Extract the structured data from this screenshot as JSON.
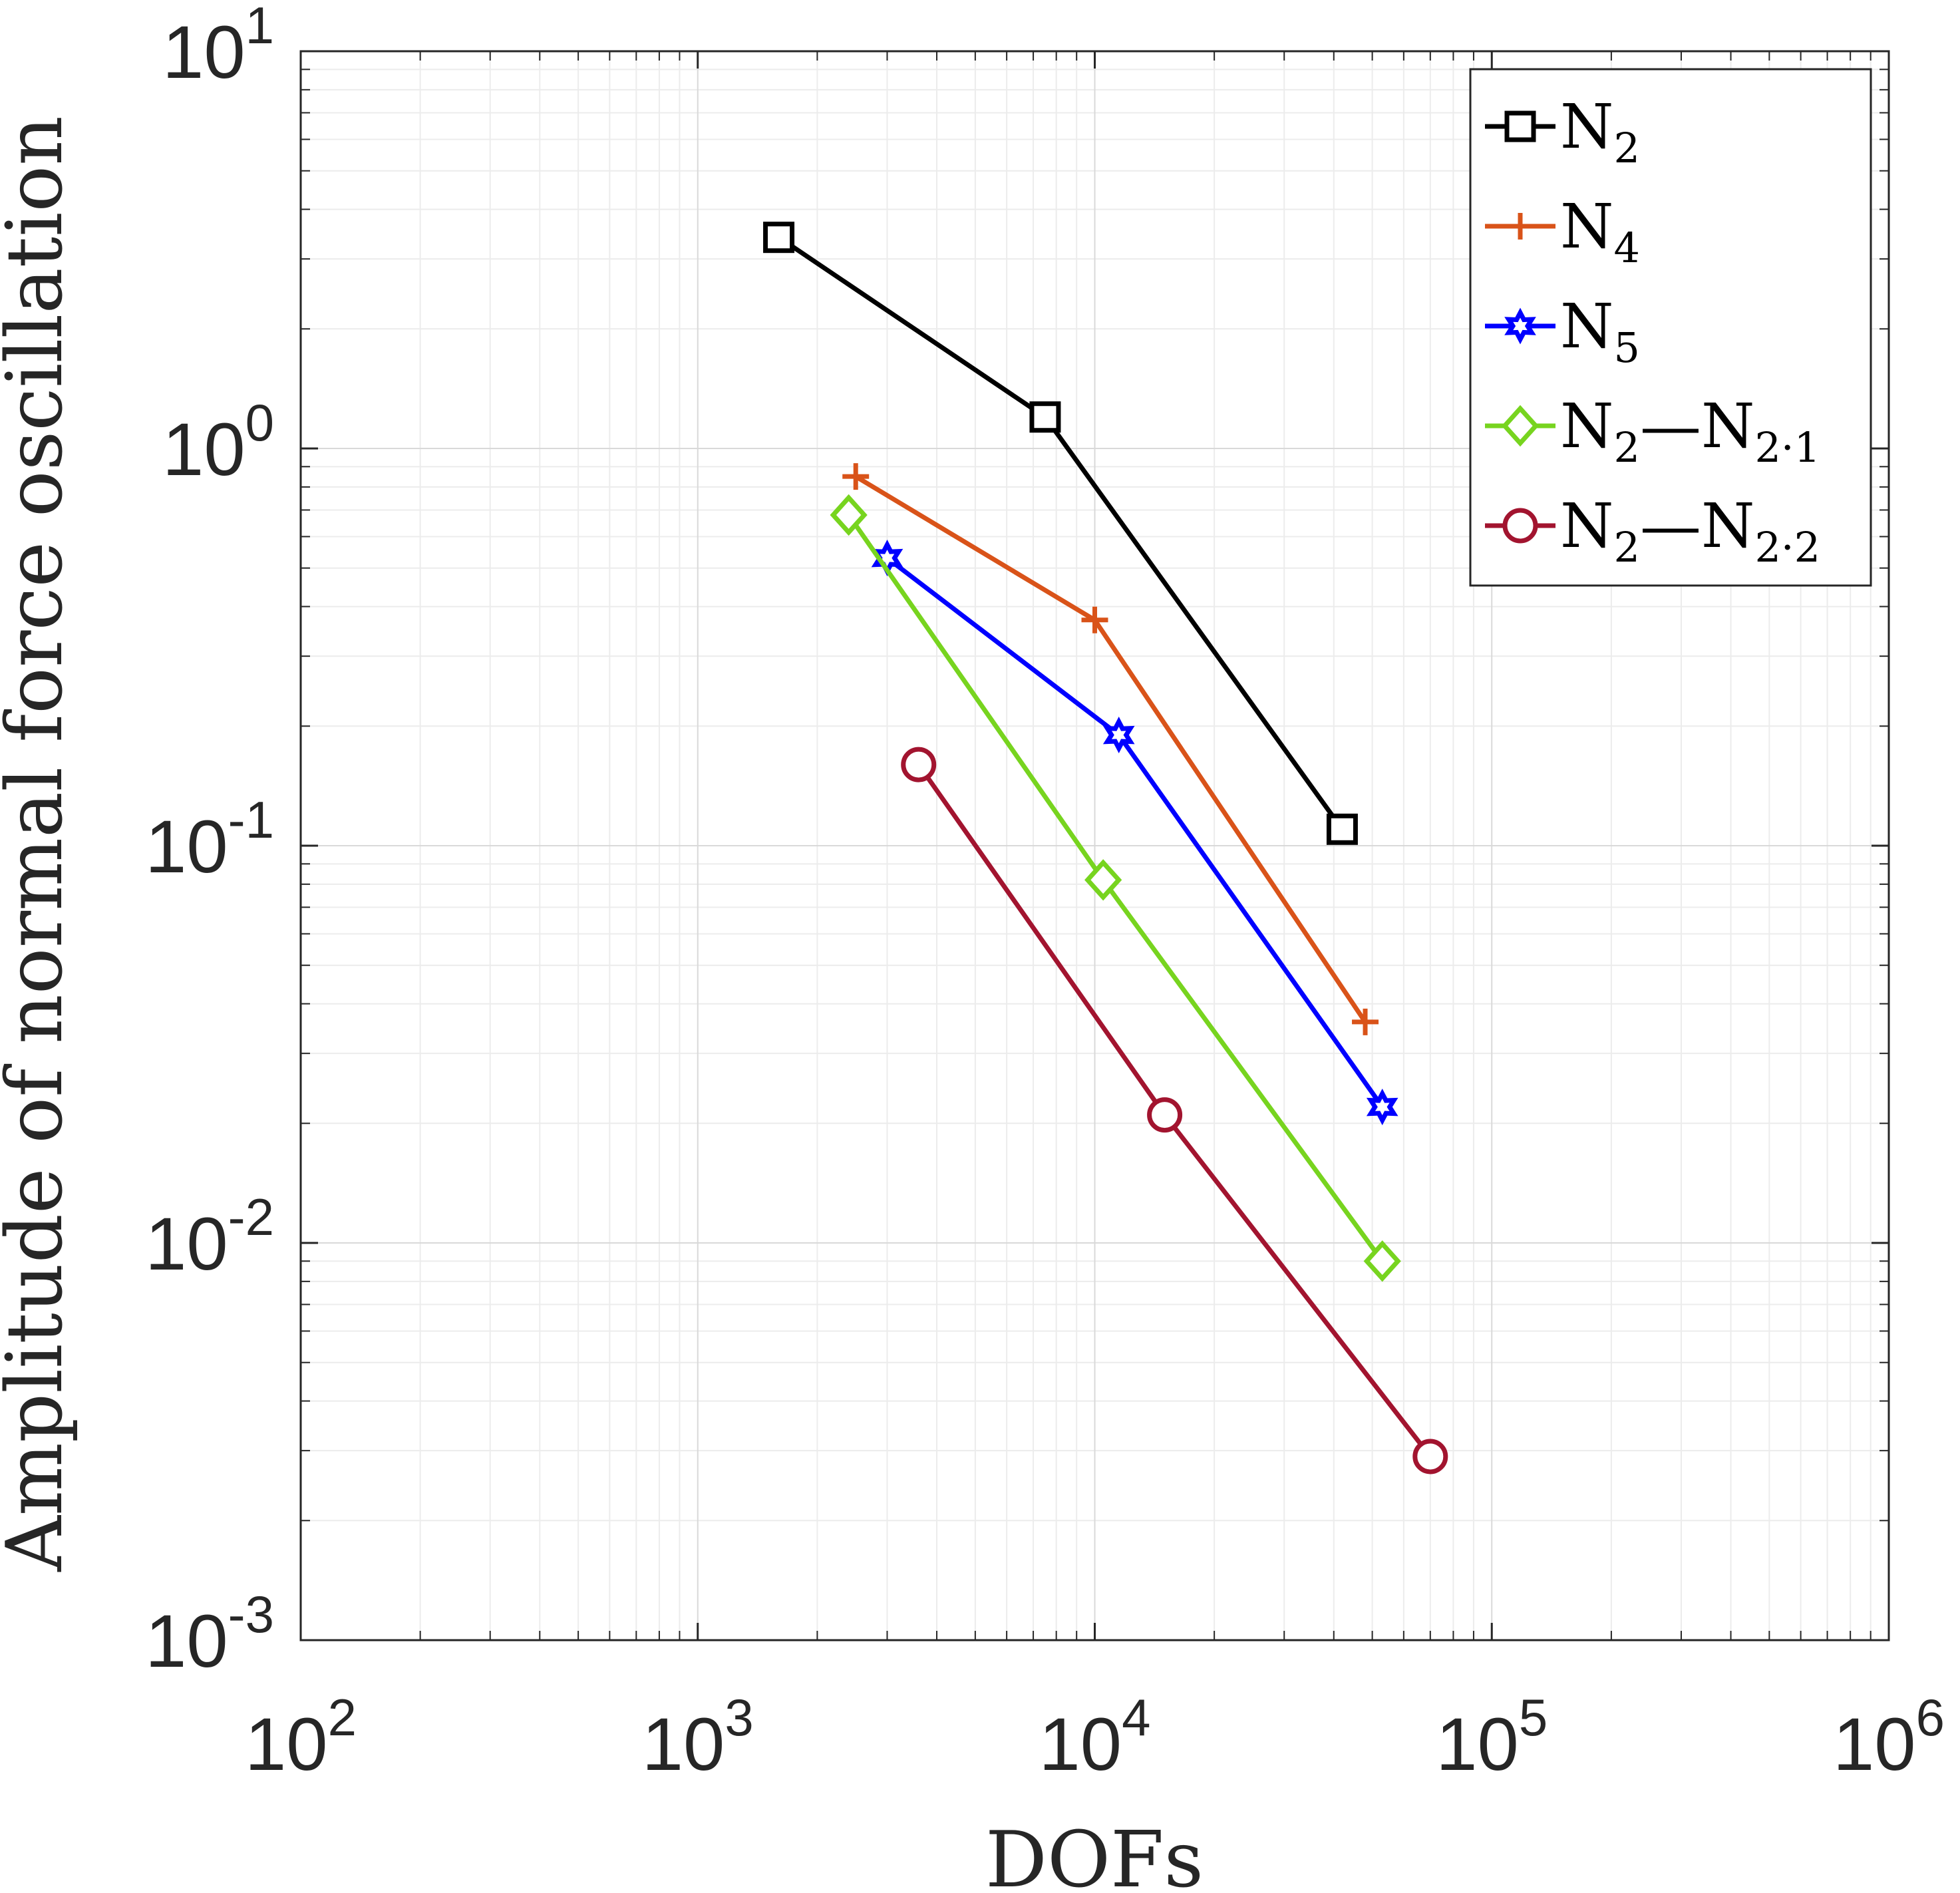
{
  "chart_data": {
    "type": "line",
    "xscale": "log",
    "yscale": "log",
    "xlabel": "DOFs",
    "ylabel": "Amplitude of normal force oscillation",
    "xlim": [
      100,
      1000000
    ],
    "ylim": [
      0.001,
      10
    ],
    "grid": true,
    "legend_position": "top-right",
    "x_ticks": [
      {
        "base": "10",
        "exp": "2",
        "value": 100
      },
      {
        "base": "10",
        "exp": "3",
        "value": 1000
      },
      {
        "base": "10",
        "exp": "4",
        "value": 10000
      },
      {
        "base": "10",
        "exp": "5",
        "value": 100000
      },
      {
        "base": "10",
        "exp": "6",
        "value": 1000000
      }
    ],
    "y_ticks": [
      {
        "base": "10",
        "exp": "1",
        "value": 10
      },
      {
        "base": "10",
        "exp": "0",
        "value": 1
      },
      {
        "base": "10",
        "exp": "-1",
        "value": 0.1
      },
      {
        "base": "10",
        "exp": "-2",
        "value": 0.01
      },
      {
        "base": "10",
        "exp": "-3",
        "value": 0.001
      }
    ],
    "series": [
      {
        "name": "N2",
        "label_base": "N",
        "label_sub": "2",
        "label_base2": "",
        "label_sub2": "",
        "color": "#000000",
        "marker": "square",
        "x": [
          1600,
          7500,
          42000
        ],
        "y": [
          3.4,
          1.2,
          0.11
        ]
      },
      {
        "name": "N4",
        "label_base": "N",
        "label_sub": "4",
        "label_base2": "",
        "label_sub2": "",
        "color": "#D95319",
        "marker": "plus",
        "x": [
          2500,
          10000,
          48000
        ],
        "y": [
          0.85,
          0.37,
          0.036
        ]
      },
      {
        "name": "N5",
        "label_base": "N",
        "label_sub": "5",
        "label_base2": "",
        "label_sub2": "",
        "color": "#0000FF",
        "marker": "hexagram",
        "x": [
          3000,
          11500,
          53000
        ],
        "y": [
          0.53,
          0.19,
          0.022
        ]
      },
      {
        "name": "N2-N2.1",
        "label_base": "N",
        "label_sub": "2",
        "label_base2": "N",
        "label_sub2": "2·1",
        "color": "#77D41F",
        "marker": "diamond",
        "x": [
          2400,
          10500,
          53000
        ],
        "y": [
          0.68,
          0.082,
          0.009
        ]
      },
      {
        "name": "N2-N2.2",
        "label_base": "N",
        "label_sub": "2",
        "label_base2": "N",
        "label_sub2": "2·2",
        "color": "#A2142F",
        "marker": "circle",
        "x": [
          3600,
          15000,
          70000
        ],
        "y": [
          0.16,
          0.021,
          0.0029
        ]
      }
    ]
  }
}
